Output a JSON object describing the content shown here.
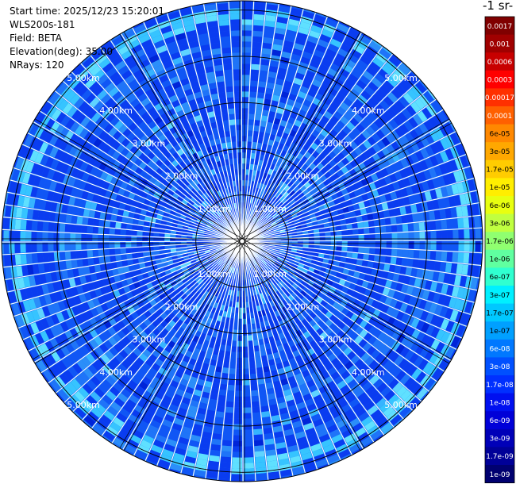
{
  "header": {
    "start_time_label": "Start time:",
    "start_time": "2025/12/23 15:20:01",
    "instrument": "WLS200s-181",
    "field_label": "Field:",
    "field": "BETA",
    "elevation_label": "Elevation(deg):",
    "elevation": "35.00",
    "nrays_label": "NRays:",
    "nrays": "120"
  },
  "colorbar": {
    "title_visible": "-1 sr-",
    "ticks": [
      "0.0017",
      "0.001",
      "0.0006",
      "0.0003",
      "0.00017",
      "0.0001",
      "6e-05",
      "3e-05",
      "1.7e-05",
      "1e-05",
      "6e-06",
      "3e-06",
      "1.7e-06",
      "1e-06",
      "6e-07",
      "3e-07",
      "1.7e-07",
      "1e-07",
      "6e-08",
      "3e-08",
      "1.7e-08",
      "1e-08",
      "6e-09",
      "3e-09",
      "1.7e-09",
      "1e-09"
    ],
    "colors": [
      "#800000",
      "#a00000",
      "#c80000",
      "#ff0000",
      "#ff3000",
      "#ff6000",
      "#ff8800",
      "#ffa800",
      "#ffcc00",
      "#ffee00",
      "#e8ff10",
      "#c0ff40",
      "#90ff70",
      "#60ffa0",
      "#30ffd0",
      "#00f0ff",
      "#00c8ff",
      "#00a0ff",
      "#0078ff",
      "#0050ff",
      "#0030ff",
      "#0010f0",
      "#0000d8",
      "#0000b8",
      "#000098",
      "#000070"
    ],
    "dark_text_index_start": 6,
    "dark_text_index_end": 17
  },
  "chart_data": {
    "type": "heatmap",
    "projection": "polar plan-position indicator (PPI)",
    "field": "BETA",
    "n_rays": 120,
    "elevation_deg": 35.0,
    "range_max_km": 5.2,
    "range_rings_km": [
      1,
      2,
      3,
      4,
      5
    ],
    "ring_labels": [
      "1.00km",
      "2.00km",
      "3.00km",
      "4.00km",
      "5.00km"
    ],
    "value_scale": "log",
    "dominant_range": [
      1e-08,
      1e-07
    ],
    "near_edge_enhanced_band_km": [
      4.6,
      5.0
    ]
  }
}
